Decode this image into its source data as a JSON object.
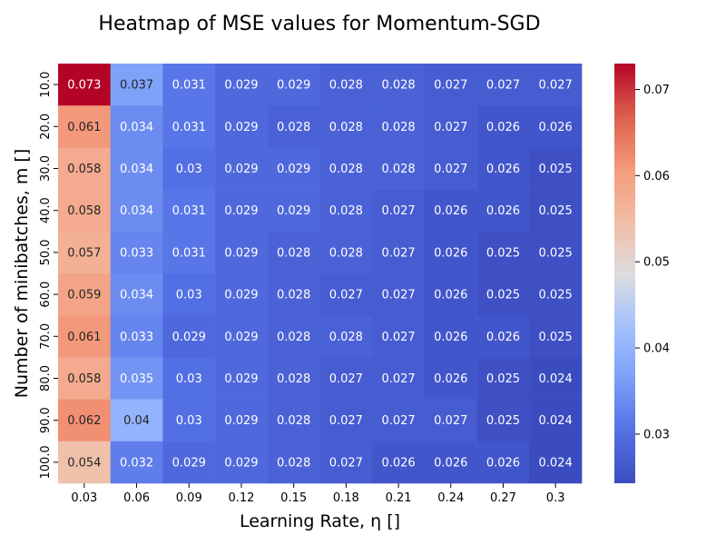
{
  "chart_data": {
    "type": "heatmap",
    "title": "Heatmap of MSE values for Momentum-SGD",
    "xlabel": "Learning Rate, η []",
    "ylabel": "Number of minibatches, m []",
    "x_categories": [
      "0.03",
      "0.06",
      "0.09",
      "0.12",
      "0.15",
      "0.18",
      "0.21",
      "0.24",
      "0.27",
      "0.3"
    ],
    "y_categories": [
      "10.0",
      "20.0",
      "30.0",
      "40.0",
      "50.0",
      "60.0",
      "70.0",
      "80.0",
      "90.0",
      "100.0"
    ],
    "values": [
      [
        0.073,
        0.037,
        0.031,
        0.029,
        0.029,
        0.028,
        0.028,
        0.027,
        0.027,
        0.027
      ],
      [
        0.061,
        0.034,
        0.031,
        0.029,
        0.028,
        0.028,
        0.028,
        0.027,
        0.026,
        0.026
      ],
      [
        0.058,
        0.034,
        0.03,
        0.029,
        0.029,
        0.028,
        0.028,
        0.027,
        0.026,
        0.025
      ],
      [
        0.058,
        0.034,
        0.031,
        0.029,
        0.029,
        0.028,
        0.027,
        0.026,
        0.026,
        0.025
      ],
      [
        0.057,
        0.033,
        0.031,
        0.029,
        0.028,
        0.028,
        0.027,
        0.026,
        0.025,
        0.025
      ],
      [
        0.059,
        0.034,
        0.03,
        0.029,
        0.028,
        0.027,
        0.027,
        0.026,
        0.025,
        0.025
      ],
      [
        0.061,
        0.033,
        0.029,
        0.029,
        0.028,
        0.028,
        0.027,
        0.026,
        0.026,
        0.025
      ],
      [
        0.058,
        0.035,
        0.03,
        0.029,
        0.028,
        0.027,
        0.027,
        0.026,
        0.025,
        0.024
      ],
      [
        0.062,
        0.04,
        0.03,
        0.029,
        0.028,
        0.027,
        0.027,
        0.027,
        0.025,
        0.024
      ],
      [
        0.054,
        0.032,
        0.029,
        0.029,
        0.028,
        0.027,
        0.026,
        0.026,
        0.026,
        0.024
      ]
    ],
    "colormap": "coolwarm",
    "color_range": [
      0.0243,
      0.073
    ],
    "colorbar_ticks": [
      0.03,
      0.04,
      0.05,
      0.06,
      0.07
    ],
    "colorbar_tick_labels": [
      "0.03",
      "0.04",
      "0.05",
      "0.06",
      "0.07"
    ],
    "annotated": true,
    "grid": false
  }
}
